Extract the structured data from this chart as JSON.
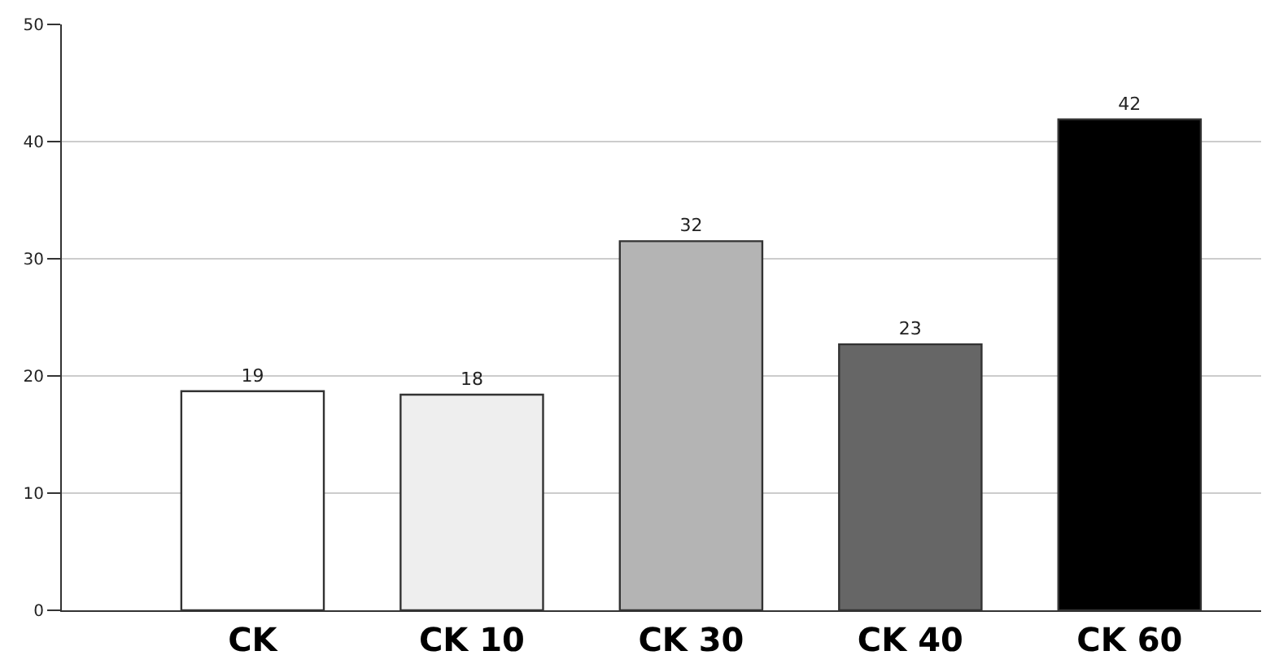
{
  "chart_data": {
    "type": "bar",
    "categories": [
      "CK",
      "CK 10",
      "CK 30",
      "CK 40",
      "CK 60"
    ],
    "values": [
      18.7,
      18.4,
      31.5,
      22.7,
      41.9
    ],
    "colors": [
      "#ffffff",
      "#eeeeee",
      "#b4b4b4",
      "#666666",
      "#000000"
    ],
    "value_labels": [
      "19",
      "18",
      "32",
      "23",
      "42"
    ],
    "ylim": [
      0,
      50
    ],
    "yticks": [
      0,
      10,
      20,
      30,
      40,
      50
    ],
    "grid": "y"
  }
}
